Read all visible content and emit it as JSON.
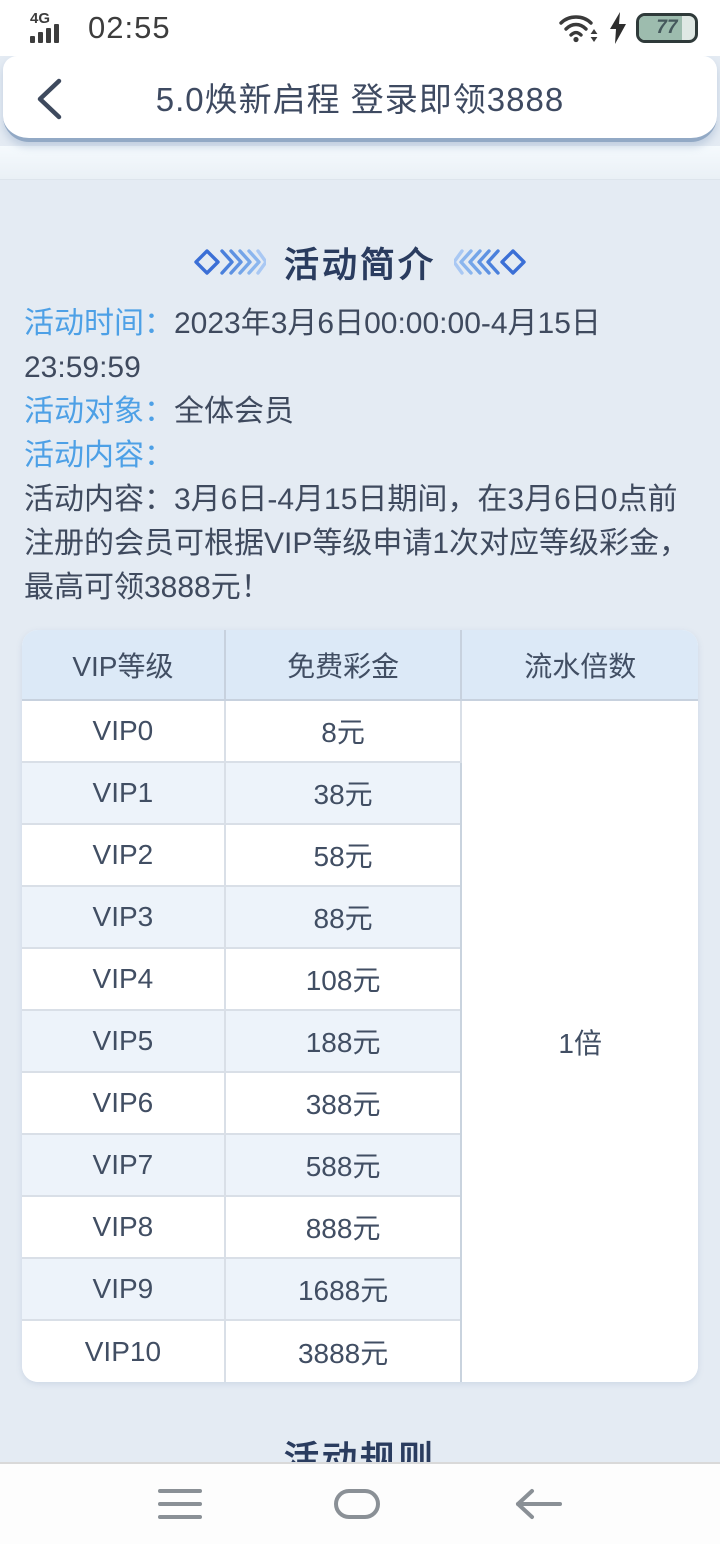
{
  "status_bar": {
    "network_label": "4G",
    "time": "02:55",
    "battery_percent": "77",
    "battery_fill_ratio": 0.77
  },
  "nav_bar": {
    "title": "5.0焕新启程 登录即领3888"
  },
  "section": {
    "title": "活动简介"
  },
  "info": {
    "time_label": "活动时间：",
    "time_value": "2023年3月6日00:00:00-4月15日23:59:59",
    "audience_label": "活动对象：",
    "audience_value": "全体会员",
    "content_label": "活动内容：",
    "content_paragraph": "活动内容：3月6日-4月15日期间，在3月6日0点前注册的会员可根据VIP等级申请1次对应等级彩金，最高可领3888元！"
  },
  "table": {
    "headers": [
      "VIP等级",
      "免费彩金",
      "流水倍数"
    ],
    "rows": [
      {
        "level": "VIP0",
        "bonus": "8元"
      },
      {
        "level": "VIP1",
        "bonus": "38元"
      },
      {
        "level": "VIP2",
        "bonus": "58元"
      },
      {
        "level": "VIP3",
        "bonus": "88元"
      },
      {
        "level": "VIP4",
        "bonus": "108元"
      },
      {
        "level": "VIP5",
        "bonus": "188元"
      },
      {
        "level": "VIP6",
        "bonus": "388元"
      },
      {
        "level": "VIP7",
        "bonus": "588元"
      },
      {
        "level": "VIP8",
        "bonus": "888元"
      },
      {
        "level": "VIP9",
        "bonus": "1688元"
      },
      {
        "level": "VIP10",
        "bonus": "3888元"
      }
    ],
    "merged_turnover_value": "1倍"
  },
  "next_section": {
    "title": "活动规则"
  },
  "colors": {
    "accent_label_blue": "#4da0e6",
    "heading_navy": "#2a3c5f",
    "decor_blue": "#3b6fd6",
    "table_header_bg": "#dce9f7",
    "table_alt_row_bg": "#edf3fa",
    "page_bg": "#e4ebf3",
    "battery_green": "#9dbcae"
  }
}
